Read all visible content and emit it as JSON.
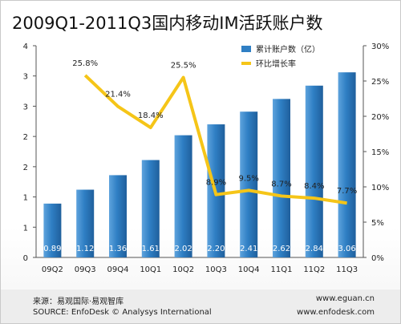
{
  "chart_data": {
    "type": "bar",
    "title": "2009Q1-2011Q3国内移动IM活跃账户数",
    "categories": [
      "09Q2",
      "09Q3",
      "09Q4",
      "10Q1",
      "10Q2",
      "10Q3",
      "10Q4",
      "11Q1",
      "11Q2",
      "11Q3"
    ],
    "series": [
      {
        "name": "累计账户数（亿）",
        "type": "bar",
        "axis": "left",
        "color": "#2f7fc4",
        "values": [
          0.89,
          1.12,
          1.36,
          1.61,
          2.02,
          2.2,
          2.41,
          2.62,
          2.84,
          3.06
        ],
        "labels": [
          "0.89",
          "1.12",
          "1.36",
          "1.61",
          "2.02",
          "2.20",
          "2.41",
          "2.62",
          "2.84",
          "3.06"
        ]
      },
      {
        "name": "环比增长率",
        "type": "line",
        "axis": "right",
        "color": "#f5c518",
        "values": [
          null,
          25.8,
          21.4,
          18.4,
          25.5,
          8.9,
          9.5,
          8.7,
          8.4,
          7.7
        ],
        "labels": [
          "",
          "25.8%",
          "21.4%",
          "18.4%",
          "25.5%",
          "8.9%",
          "9.5%",
          "8.7%",
          "8.4%",
          "7.7%"
        ]
      }
    ],
    "left_axis": {
      "ticks": [
        "0",
        "1",
        "1",
        "2",
        "2",
        "3",
        "3",
        "4"
      ],
      "ylim": [
        0,
        3.5
      ]
    },
    "right_axis": {
      "ticks": [
        "0%",
        "5%",
        "10%",
        "15%",
        "20%",
        "25%",
        "30%"
      ],
      "ylim": [
        0,
        30
      ]
    },
    "legend_position": "top-right",
    "grid": false
  },
  "footer": {
    "source_cn": "来源：易观国际·易观智库",
    "source_en": "SOURCE: EnfoDesk © Analysys International",
    "url1": "www.eguan.cn",
    "url2": "www.enfodesk.com"
  },
  "colors": {
    "bar": "#2f7fc4",
    "line": "#f5c518"
  }
}
